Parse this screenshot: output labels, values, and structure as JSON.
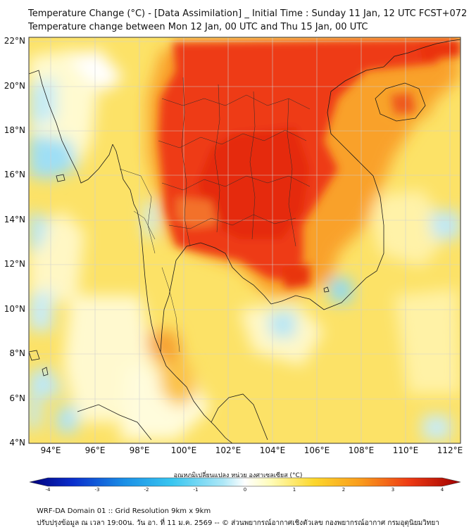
{
  "header": {
    "title_line1": "Temperature Change (°C) - [Data Assimilation] _ Initial Time : Sunday 11 Jan, 12 UTC FCST+072",
    "title_line2": "Temperature change between Mon 12 Jan, 00 UTC and Thu 15 Jan, 00 UTC"
  },
  "map": {
    "lat_labels": [
      "22°N",
      "20°N",
      "18°N",
      "16°N",
      "14°N",
      "12°N",
      "10°N",
      "8°N",
      "6°N",
      "4°N"
    ],
    "lon_labels": [
      "94°E",
      "96°E",
      "98°E",
      "100°E",
      "102°E",
      "104°E",
      "106°E",
      "108°E",
      "110°E",
      "112°E"
    ],
    "lat_range": [
      4,
      22.2
    ],
    "lon_range": [
      93,
      112.5
    ],
    "grid": true,
    "colors": {
      "land_border": "#1a1a1a",
      "gridline": "#cccccc"
    }
  },
  "colorbar": {
    "label": "อุณหภูมิเปลี่ยนแปลง หน่วย องศาเซลเซียส (°C)",
    "ticks": [
      "-4",
      "-3",
      "-2",
      "-1",
      "0",
      "1",
      "2",
      "3",
      "4"
    ],
    "range": [
      -4,
      4
    ],
    "colors": [
      "#00007a",
      "#0a2ecc",
      "#1a8fe6",
      "#38c6f0",
      "#aee8f7",
      "#ffffff",
      "#fffcb8",
      "#fcd72c",
      "#f99a1c",
      "#ee3b14",
      "#a00000"
    ]
  },
  "footer": {
    "line1": "WRF-DA Domain 01 :: Grid Resolution 9km x 9km",
    "line2": "ปรับปรุงข้อมูล ณ เวลา 19:00น. วัน อา. ที่ 11 ม.ค. 2569 -- © ส่วนพยากรณ์อากาศเชิงตัวเลข กองพยากรณ์อากาศ กรมอุตุนิยมวิทยา"
  }
}
